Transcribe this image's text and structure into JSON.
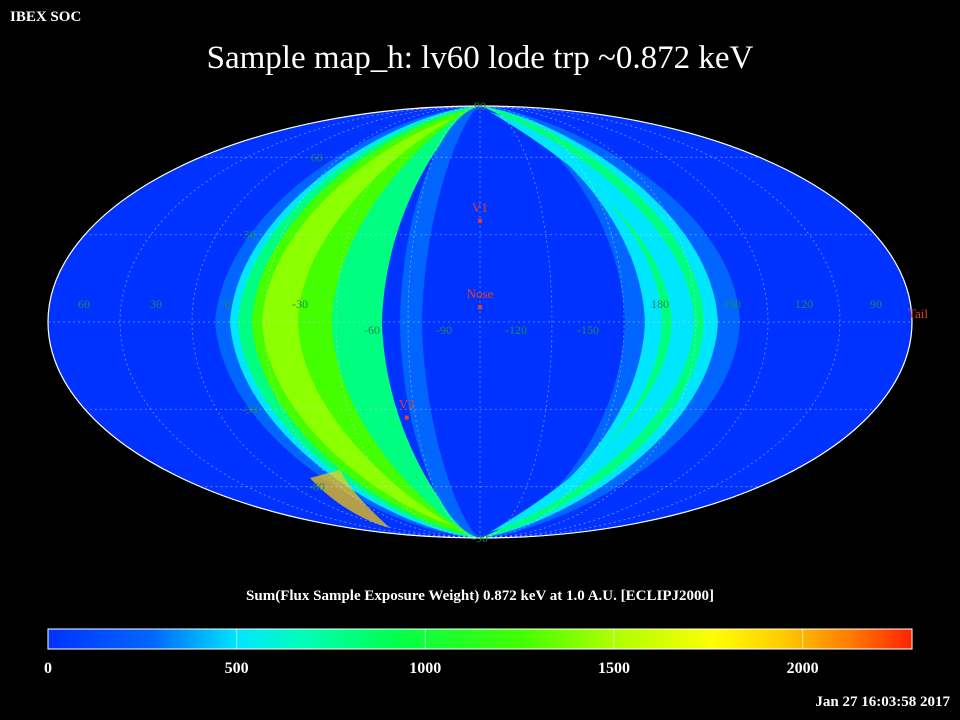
{
  "header": {
    "org": "IBEX SOC",
    "title": "Sample map_h: lv60 lode trp ~0.872 keV",
    "timestamp": "Jan 27 16:03:58 2017"
  },
  "map": {
    "projection": "mollweide",
    "frame": "ECLIPJ2000",
    "background_color": "#0033ff",
    "longitude_labels": [
      "60",
      "30",
      "0",
      "-30",
      "-60",
      "-90",
      "-120",
      "-150",
      "180",
      "150",
      "120",
      "90"
    ],
    "latitude_labels": [
      "90",
      "60",
      "30",
      "-30",
      "-60",
      "-90"
    ],
    "markers": [
      {
        "name": "V1"
      },
      {
        "name": "Nose"
      },
      {
        "name": "V2"
      },
      {
        "name": "Tail"
      }
    ]
  },
  "colorbar": {
    "title": "Sum(Flux Sample Exposure Weight)  0.872 keV at 1.0 A.U. [ECLIPJ2000]",
    "ticks": [
      "0",
      "500",
      "1000",
      "1500",
      "2000"
    ],
    "range": [
      0,
      2290
    ],
    "colors": [
      "#0033ff",
      "#0066ff",
      "#00e6ff",
      "#00ffb3",
      "#00ff4d",
      "#44ff00",
      "#a8ff00",
      "#ffff00",
      "#ffcc00",
      "#ff7a00",
      "#ff2200"
    ]
  }
}
